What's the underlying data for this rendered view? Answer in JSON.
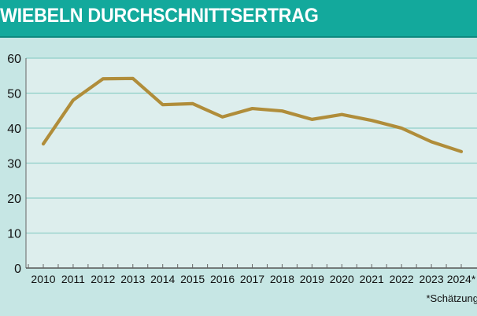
{
  "chart_data": {
    "type": "line",
    "title": "WIEBELN DURCHSCHNITTSERTRAG",
    "xlabel": "",
    "ylabel": "",
    "categories": [
      "2010",
      "2011",
      "2012",
      "2013",
      "2014",
      "2015",
      "2016",
      "2017",
      "2018",
      "2019",
      "2020",
      "2021",
      "2022",
      "2023",
      "2024*"
    ],
    "series": [
      {
        "values": [
          35.5,
          48.0,
          54.1,
          54.2,
          46.7,
          47.0,
          43.2,
          45.6,
          44.9,
          42.5,
          43.9,
          42.2,
          40.0,
          36.1,
          33.3
        ]
      }
    ],
    "ylim": [
      0,
      60
    ],
    "yticks": [
      0,
      10,
      20,
      30,
      40,
      50,
      60
    ],
    "grid": true,
    "footnote": "*Schätzung",
    "colors": {
      "line": "#b08d3a",
      "grid": "#8fcfc8",
      "plot_bg": "#ddeeed",
      "header": "#13a99c"
    }
  }
}
